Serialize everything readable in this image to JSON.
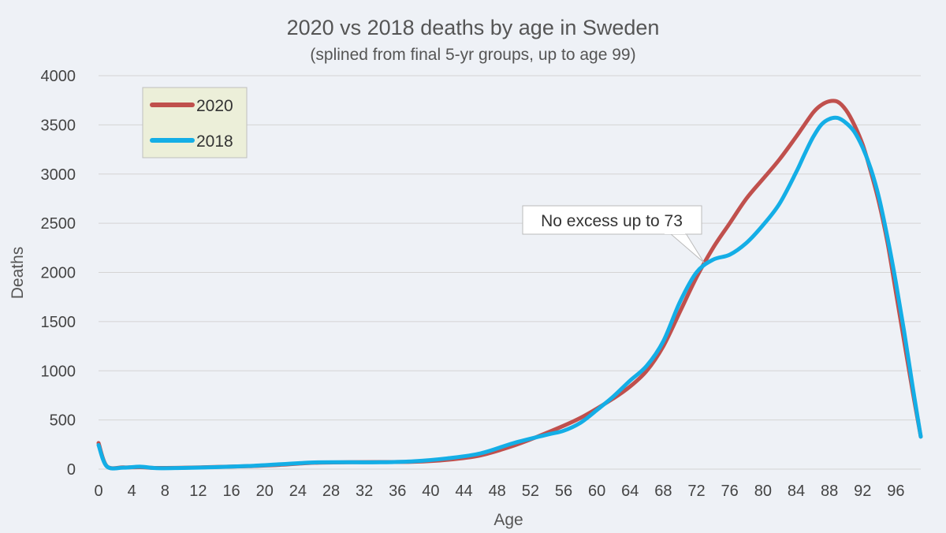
{
  "chart_data": {
    "type": "line",
    "title": "2020 vs 2018 deaths by age in Sweden",
    "subtitle": "(splined from final 5-yr groups, up to age 99)",
    "xlabel": "Age",
    "ylabel": "Deaths",
    "xlim": [
      0,
      99
    ],
    "ylim": [
      0,
      4000
    ],
    "x_ticks": [
      0,
      4,
      8,
      12,
      16,
      20,
      24,
      28,
      32,
      36,
      40,
      44,
      48,
      52,
      56,
      60,
      64,
      68,
      72,
      76,
      80,
      84,
      88,
      92,
      96
    ],
    "y_ticks": [
      0,
      500,
      1000,
      1500,
      2000,
      2500,
      3000,
      3500,
      4000
    ],
    "grid": "horizontal",
    "legend": "top-left",
    "annotation": {
      "text": "No excess up to 73",
      "x": 73,
      "y": 2100
    },
    "series": [
      {
        "name": "2020",
        "color": "#c0504d",
        "x": [
          0,
          1,
          3,
          5,
          7,
          10,
          14,
          18,
          22,
          26,
          30,
          34,
          38,
          42,
          46,
          50,
          54,
          58,
          62,
          64,
          66,
          68,
          70,
          72,
          74,
          76,
          78,
          80,
          82,
          84,
          86,
          87,
          88,
          89,
          90,
          91,
          92,
          93,
          94,
          95,
          96,
          97,
          98,
          99
        ],
        "y": [
          265,
          30,
          18,
          20,
          12,
          14,
          22,
          30,
          45,
          65,
          70,
          72,
          75,
          95,
          140,
          240,
          370,
          520,
          720,
          840,
          1000,
          1250,
          1600,
          1950,
          2250,
          2500,
          2750,
          2950,
          3150,
          3380,
          3620,
          3700,
          3740,
          3735,
          3650,
          3500,
          3300,
          3020,
          2700,
          2300,
          1800,
          1300,
          800,
          330
        ]
      },
      {
        "name": "2018",
        "color": "#14aee6",
        "x": [
          0,
          1,
          3,
          5,
          7,
          10,
          14,
          18,
          22,
          26,
          30,
          34,
          38,
          42,
          46,
          50,
          54,
          56,
          58,
          60,
          62,
          64,
          66,
          68,
          70,
          72,
          74,
          76,
          78,
          80,
          82,
          84,
          85,
          86,
          87,
          88,
          89,
          90,
          91,
          92,
          93,
          94,
          95,
          96,
          97,
          98,
          99
        ],
        "y": [
          245,
          28,
          15,
          25,
          10,
          12,
          20,
          32,
          50,
          68,
          70,
          70,
          80,
          110,
          160,
          265,
          350,
          390,
          470,
          600,
          740,
          900,
          1050,
          1300,
          1700,
          2000,
          2130,
          2180,
          2300,
          2480,
          2700,
          3020,
          3200,
          3370,
          3500,
          3560,
          3570,
          3520,
          3430,
          3270,
          3050,
          2750,
          2350,
          1900,
          1400,
          850,
          330
        ]
      }
    ]
  }
}
